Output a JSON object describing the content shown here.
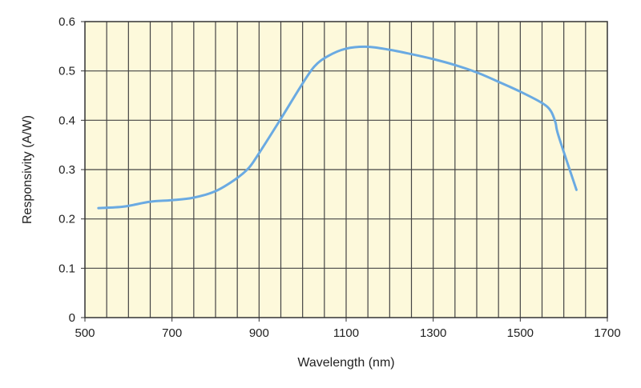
{
  "chart_data": {
    "type": "line",
    "title": "",
    "xlabel": "Wavelength (nm)",
    "ylabel": "Responsivity (A/W)",
    "xlim": [
      500,
      1700
    ],
    "ylim": [
      0,
      0.6
    ],
    "xticks": [
      500,
      700,
      900,
      1100,
      1300,
      1500,
      1700
    ],
    "xtick_labels": [
      "500",
      "700",
      "900",
      "1100",
      "1300",
      "1500",
      "1700"
    ],
    "yticks": [
      0,
      0.1,
      0.2,
      0.3,
      0.4,
      0.5,
      0.6
    ],
    "ytick_labels": [
      "0",
      "0.1",
      "0.2",
      "0.3",
      "0.4",
      "0.5",
      "0.6"
    ],
    "x_grid_step": 50,
    "grid": true,
    "background_color": "#fdf9db",
    "grid_color": "#444444",
    "line_color": "#6aaae2",
    "series": [
      {
        "x": [
          531,
          589,
          650,
          699,
          749,
          799,
          845,
          876,
          899,
          950,
          996,
          1027,
          1058,
          1099,
          1149,
          1199,
          1250,
          1300,
          1350,
          1400,
          1450,
          1500,
          1550,
          1570,
          1581,
          1588,
          1629
        ],
        "y": [
          0.222,
          0.225,
          0.235,
          0.238,
          0.243,
          0.256,
          0.28,
          0.303,
          0.332,
          0.403,
          0.469,
          0.509,
          0.53,
          0.545,
          0.549,
          0.543,
          0.534,
          0.524,
          0.512,
          0.497,
          0.478,
          0.458,
          0.435,
          0.419,
          0.395,
          0.368,
          0.259
        ]
      }
    ]
  }
}
